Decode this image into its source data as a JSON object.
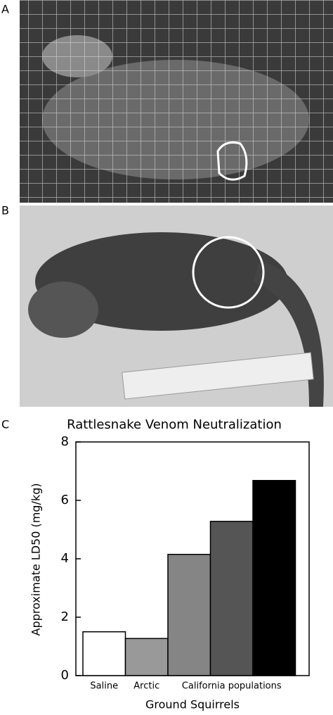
{
  "panel_labels": [
    "A",
    "B"
  ],
  "chart_data": {
    "type": "bar",
    "panel_label": "C",
    "title": "Rattlesnake Venom Neutralization",
    "y_label": "Approximate LD50 (mg/kg)",
    "x_label": "Ground Squirrels",
    "categories": [
      "Saline",
      "Arctic",
      null,
      null,
      null
    ],
    "group_label": "California populations",
    "values": [
      1.5,
      1.27,
      4.15,
      5.28,
      6.68
    ],
    "colors": [
      "#ffffff",
      "#999999",
      "#858585",
      "#555555",
      "#000000"
    ],
    "ylim": [
      0,
      8
    ],
    "yticks": [
      0,
      2,
      4,
      6,
      8
    ],
    "grid": false
  }
}
